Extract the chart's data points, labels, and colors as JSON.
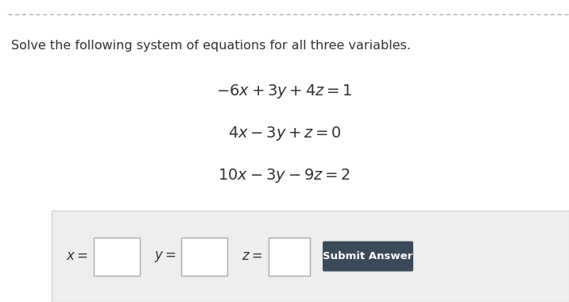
{
  "title_text": "Solve the following system of equations for all three variables.",
  "eq1": "$-6x + 3y + 4z = 1$",
  "eq2": "$4x - 3y + z = 0$",
  "eq3": "$10x - 3y - 9z = 2$",
  "answer_label_x": "$x =$",
  "answer_label_y": "$y =$",
  "answer_label_z": "$z =$",
  "submit_text": "Submit Answer",
  "title_color": "#333333",
  "eq_color": "#333333",
  "bg_color": "#ffffff",
  "answer_bg_color": "#eeeeee",
  "submit_bg_color": "#3a4a5a",
  "submit_text_color": "#ffffff",
  "dashed_line_color": "#aaaaaa",
  "title_fontsize": 11.5,
  "eq_fontsize": 14,
  "answer_fontsize": 12,
  "submit_fontsize": 9.5
}
